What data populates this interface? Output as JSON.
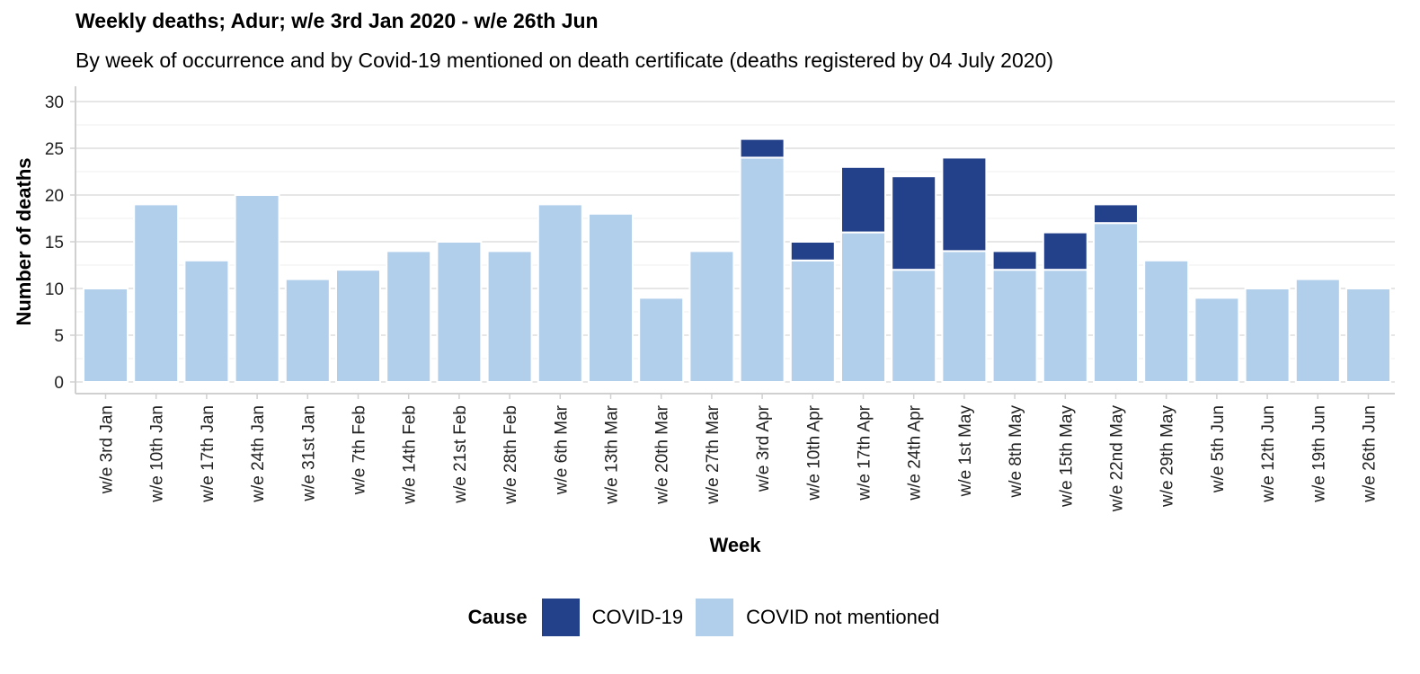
{
  "header": {
    "title": "Weekly deaths; Adur; w/e 3rd Jan 2020 - w/e 26th Jun",
    "subtitle": "By week of occurrence and by Covid-19 mentioned on death certificate (deaths registered by 04 July 2020)"
  },
  "legend": {
    "title": "Cause",
    "items": [
      {
        "label": "COVID-19",
        "color": "#23418a"
      },
      {
        "label": "COVID not mentioned",
        "color": "#b1cfeb"
      }
    ]
  },
  "chart_data": {
    "type": "bar",
    "stacked": true,
    "title": "Weekly deaths; Adur; w/e 3rd Jan 2020 - w/e 26th Jun",
    "subtitle": "By week of occurrence and by Covid-19 mentioned on death certificate (deaths registered by 04 July 2020)",
    "xlabel": "Week",
    "ylabel": "Number of deaths",
    "ylim": [
      0,
      30
    ],
    "yticks": [
      0,
      5,
      10,
      15,
      20,
      25,
      30
    ],
    "grid": true,
    "legend_position": "bottom",
    "categories": [
      "w/e 3rd Jan",
      "w/e 10th Jan",
      "w/e 17th Jan",
      "w/e 24th Jan",
      "w/e 31st Jan",
      "w/e 7th Feb",
      "w/e 14th Feb",
      "w/e 21st Feb",
      "w/e 28th Feb",
      "w/e 6th Mar",
      "w/e 13th Mar",
      "w/e 20th Mar",
      "w/e 27th Mar",
      "w/e 3rd Apr",
      "w/e 10th Apr",
      "w/e 17th Apr",
      "w/e 24th Apr",
      "w/e 1st May",
      "w/e 8th May",
      "w/e 15th May",
      "w/e 22nd May",
      "w/e 29th May",
      "w/e 5th Jun",
      "w/e 12th Jun",
      "w/e 19th Jun",
      "w/e 26th Jun"
    ],
    "series": [
      {
        "name": "COVID not mentioned",
        "color": "#b1cfeb",
        "values": [
          10,
          19,
          13,
          20,
          11,
          12,
          14,
          15,
          14,
          19,
          18,
          9,
          14,
          24,
          13,
          16,
          12,
          14,
          12,
          12,
          17,
          13,
          9,
          10,
          11,
          10
        ]
      },
      {
        "name": "COVID-19",
        "color": "#23418a",
        "values": [
          0,
          0,
          0,
          0,
          0,
          0,
          0,
          0,
          0,
          0,
          0,
          0,
          0,
          2,
          2,
          7,
          10,
          10,
          2,
          4,
          2,
          0,
          0,
          0,
          0,
          0
        ]
      }
    ]
  }
}
